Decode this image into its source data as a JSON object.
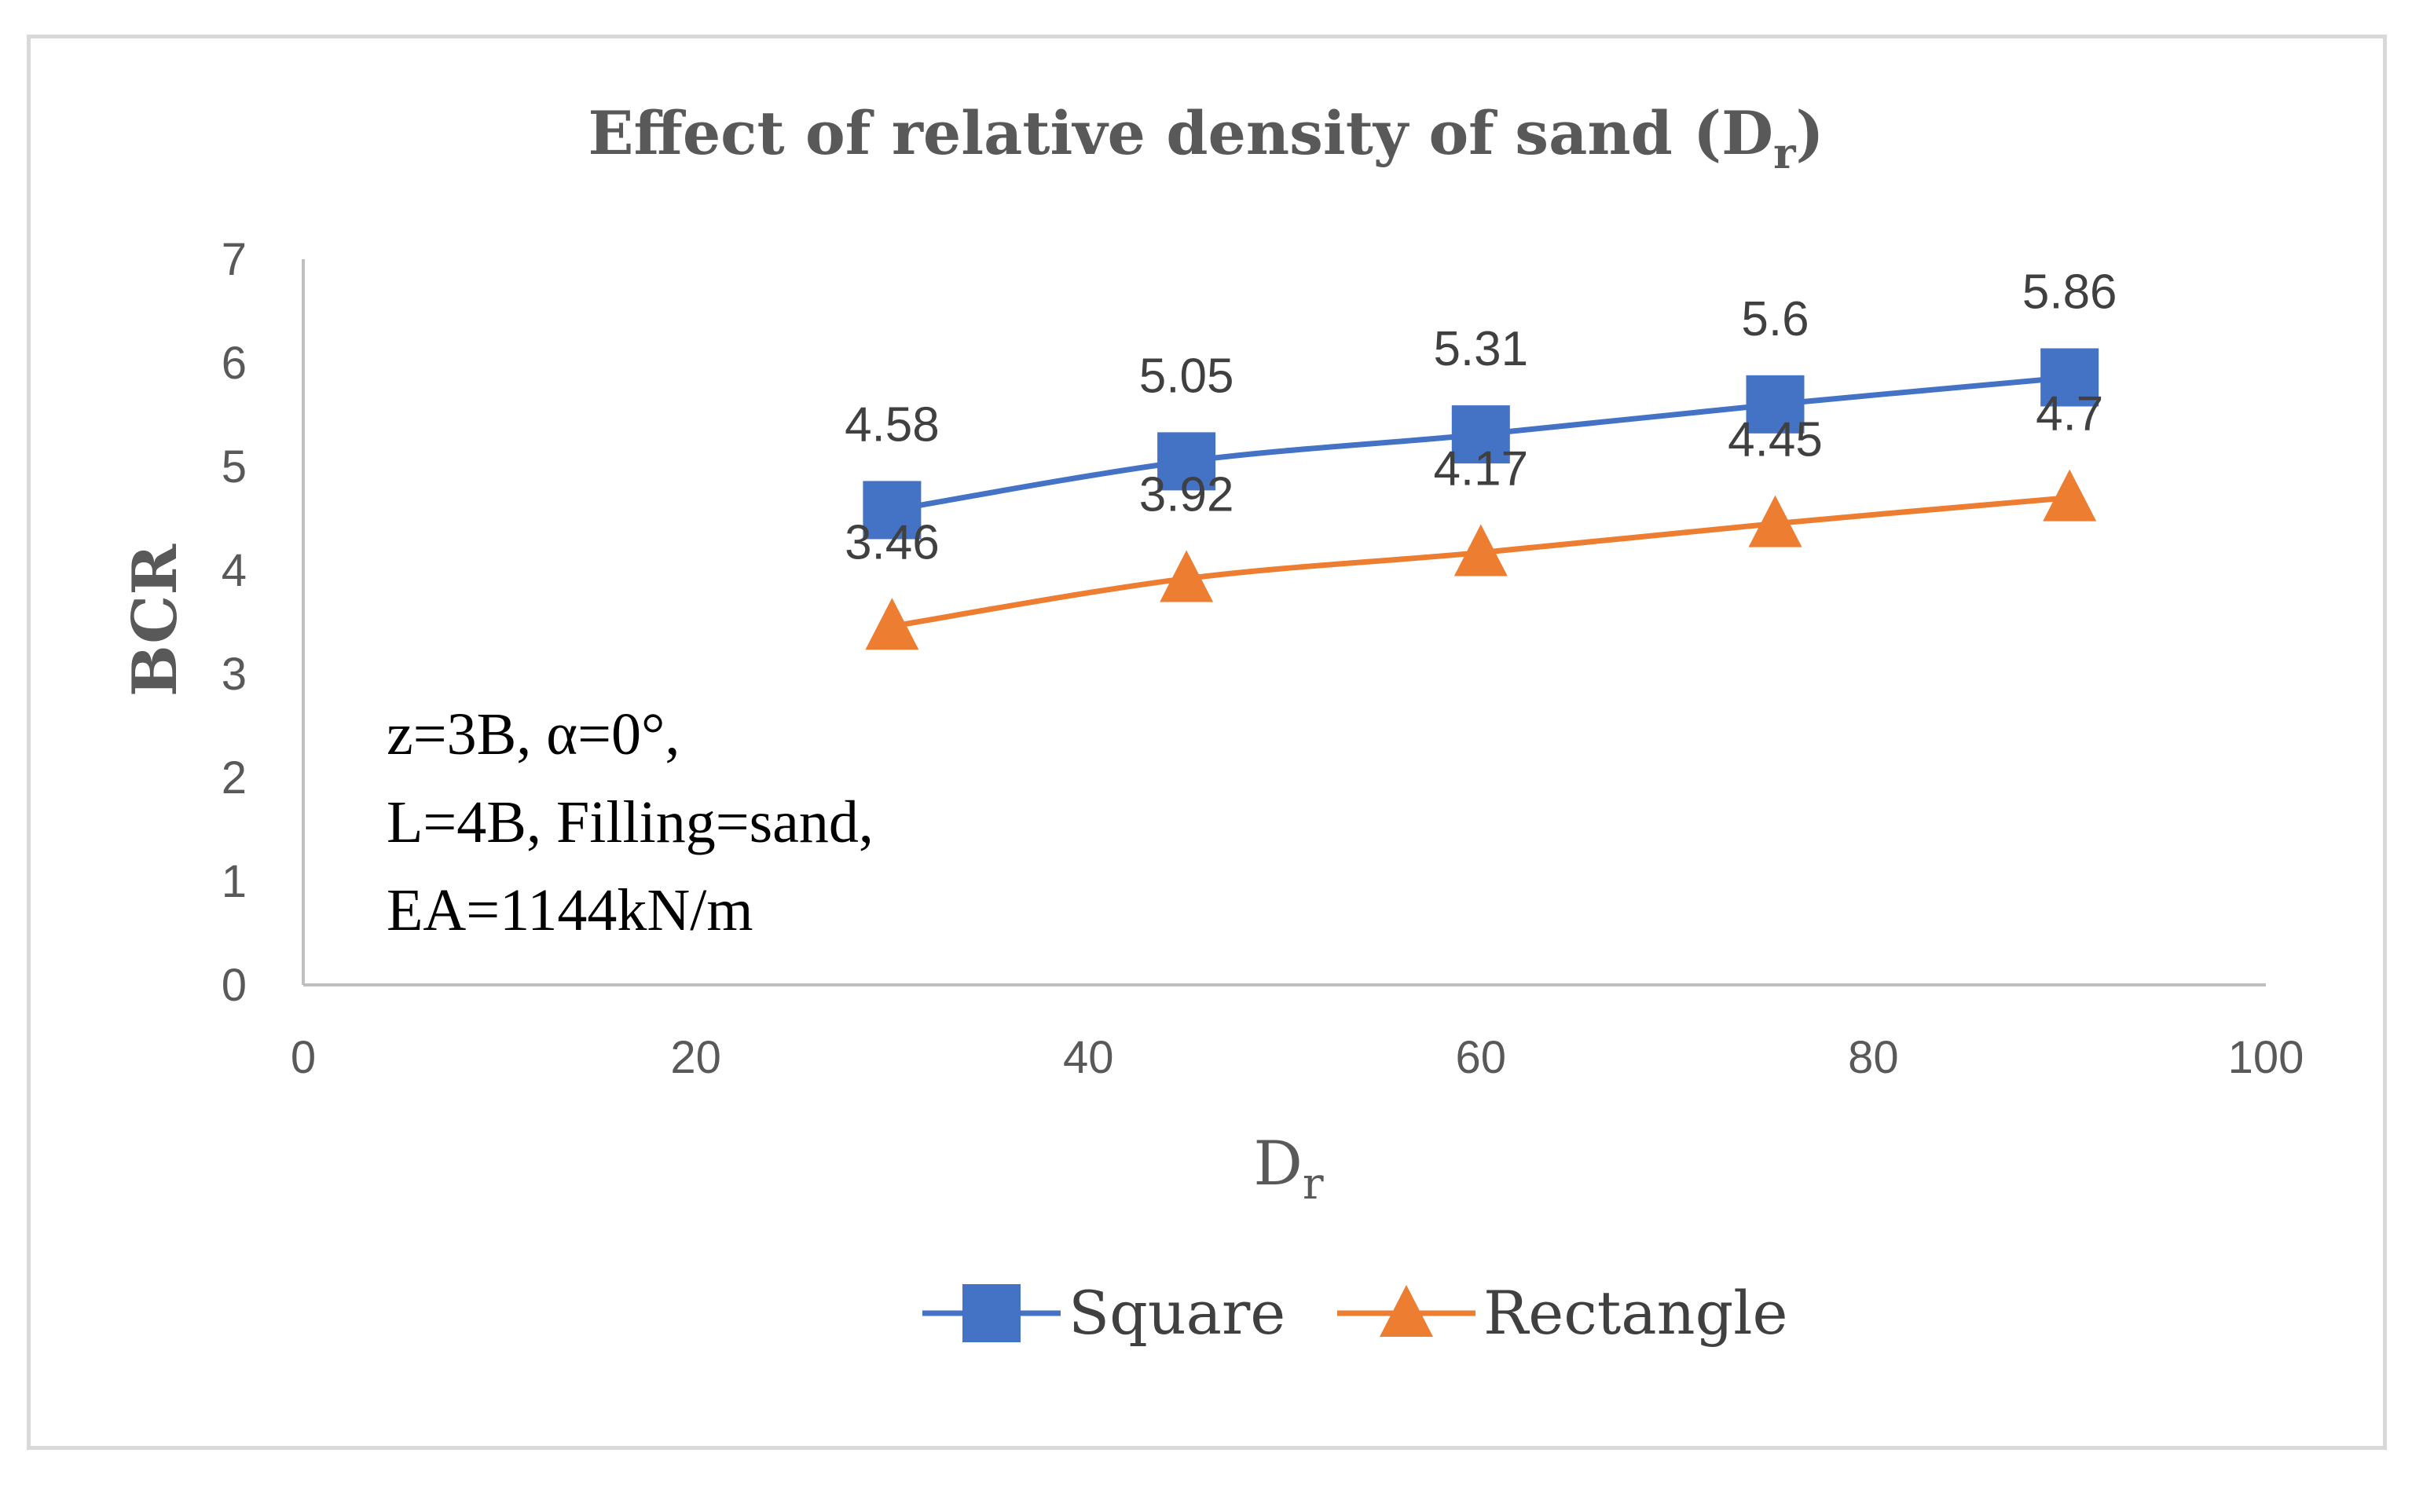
{
  "chart_data": {
    "type": "line",
    "title": "Effect of relative density of sand (D",
    "title_sub": "r",
    "title_end": ")",
    "xlabel": "D",
    "xlabel_sub": "r",
    "ylabel": "BCR",
    "xlim": [
      0,
      100
    ],
    "ylim": [
      0,
      7
    ],
    "xticks": [
      0,
      20,
      40,
      60,
      80,
      100
    ],
    "yticks": [
      0,
      1,
      2,
      3,
      4,
      5,
      6,
      7
    ],
    "grid": false,
    "legend_position": "bottom",
    "x": [
      30,
      45,
      60,
      75,
      90
    ],
    "series": [
      {
        "name": "Square",
        "values": [
          4.58,
          5.05,
          5.31,
          5.6,
          5.86
        ],
        "color": "#4472c4",
        "marker": "square"
      },
      {
        "name": "Rectangle",
        "values": [
          3.46,
          3.92,
          4.17,
          4.45,
          4.7
        ],
        "color": "#ed7d31",
        "marker": "triangle"
      }
    ],
    "annotation_lines": [
      "z=3B, α=0°,",
      "L=4B, Filling=sand,",
      "EA=1144kN/m"
    ]
  }
}
